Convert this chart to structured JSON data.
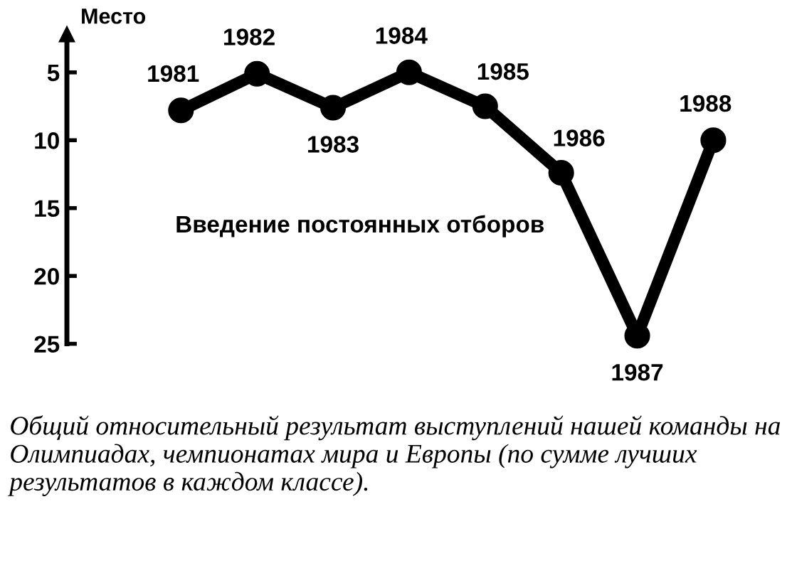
{
  "chart_data": {
    "type": "line",
    "ylabel": "Место",
    "categories": [
      null,
      null,
      null,
      null,
      null,
      null,
      null,
      null
    ],
    "series": [
      {
        "color": "#000000",
        "values": [
          7.8,
          5.1,
          7.6,
          5.0,
          7.5,
          12.4,
          24.4,
          10.0
        ]
      }
    ],
    "ylim": [
      25,
      2.2
    ],
    "yticks": [
      5,
      10,
      15,
      20,
      25
    ],
    "tick_labels": "y",
    "grid": false,
    "legend": false,
    "marker": "circle",
    "line_style": "solid",
    "annotations": [
      "Введение постоянных отборов",
      "Общий относительный результат выступлений нашей команды на Олимпиадах, чемпионатах мира и Европы (по сумме лучших результатов в каждом классе).",
      {
        "text": "1981",
        "y": 7.8
      },
      {
        "text": "1982",
        "y": 5.1
      },
      {
        "text": "1983",
        "y": 7.6
      },
      {
        "text": "1984",
        "y": 5.0
      },
      {
        "text": "1985",
        "y": 7.5
      },
      {
        "text": "1986",
        "y": 12.4
      },
      {
        "text": "1987",
        "y": 24.4
      },
      {
        "text": "1988",
        "y": 10.0
      }
    ]
  }
}
